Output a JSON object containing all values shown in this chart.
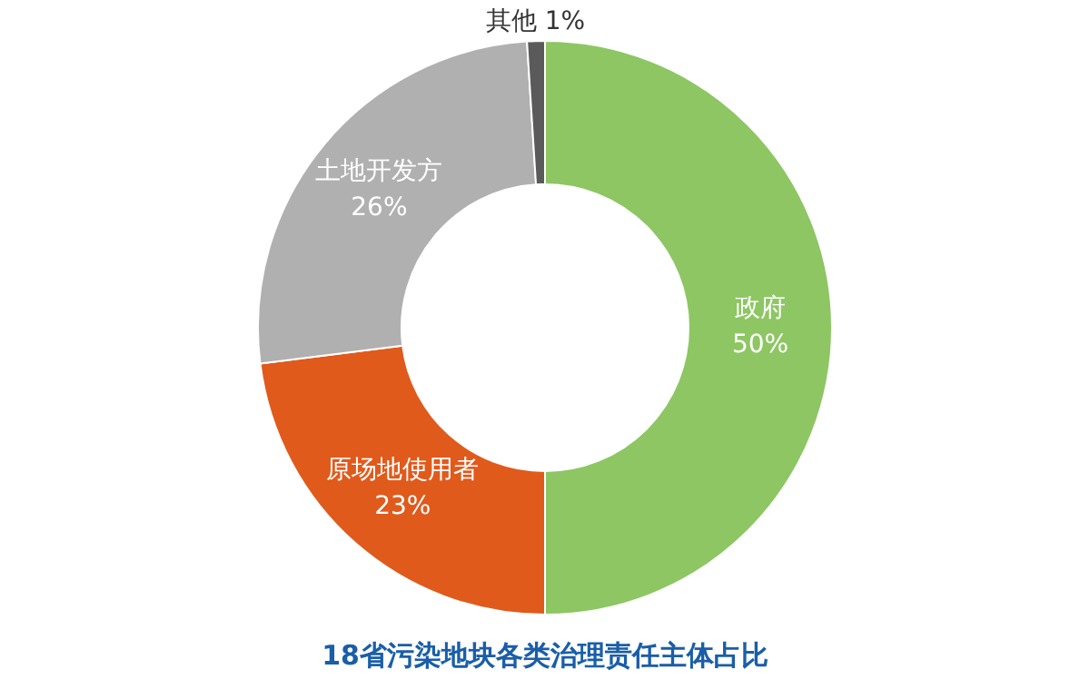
{
  "chart_data": {
    "type": "donut",
    "title": "18省污染地块各类治理责任主体占比",
    "categories": [
      "政府",
      "原场地使用者",
      "土地开发方",
      "其他"
    ],
    "values": [
      50,
      23,
      26,
      1
    ],
    "value_labels": [
      "50%",
      "23%",
      "26%",
      "1%"
    ],
    "colors": [
      "#8dc663",
      "#e05a1c",
      "#b0b0b0",
      "#5a5a5a"
    ],
    "legend": false
  }
}
